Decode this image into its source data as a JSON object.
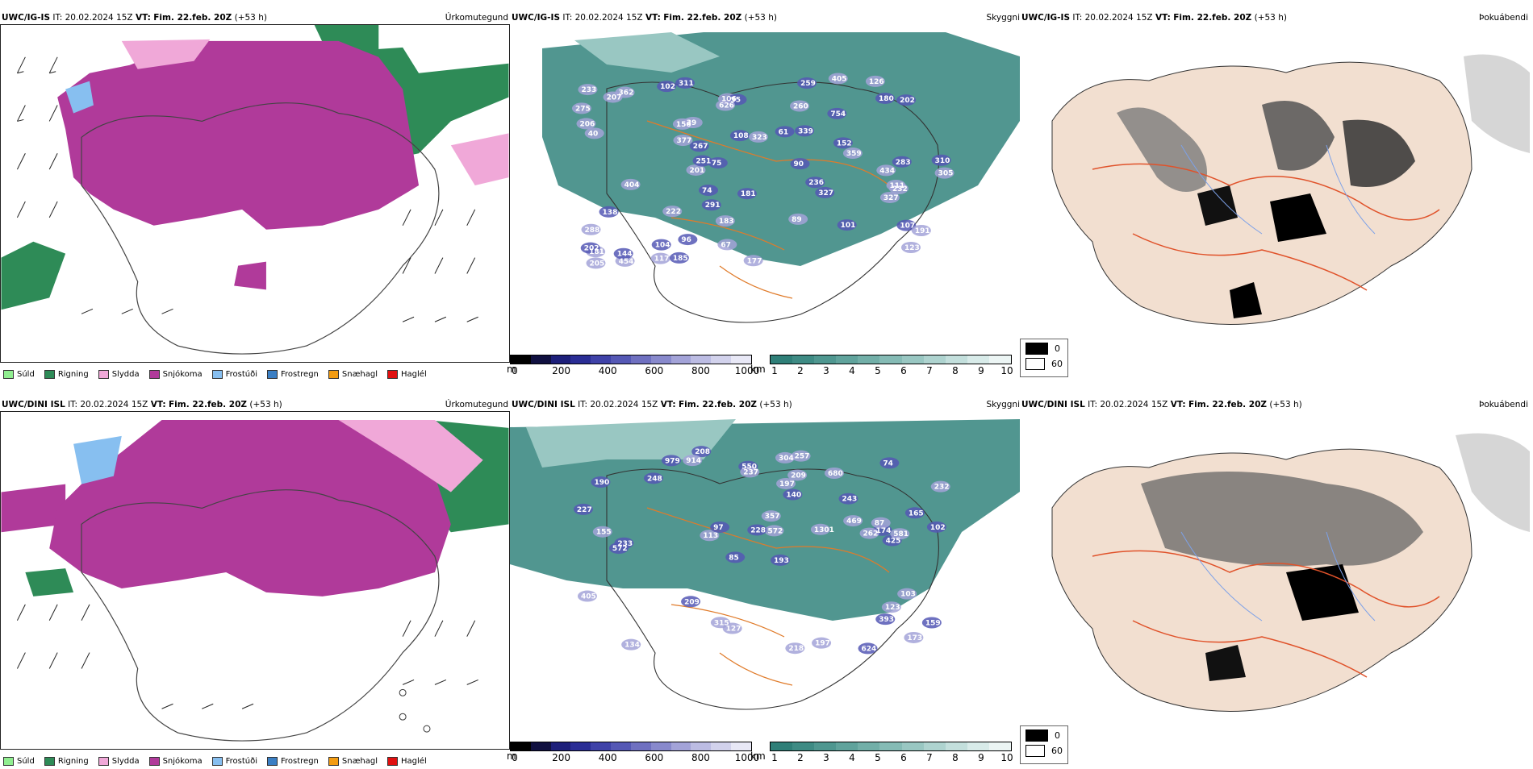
{
  "panels": [
    {
      "model": "UWC/IG-IS",
      "info": "IT: 20.02.2024 15Z",
      "vt_label": "VT:",
      "vt": "Fim. 22.feb. 20Z",
      "lead": "(+53 h)",
      "variable": "Úrkomutegund"
    },
    {
      "model": "UWC/IG-IS",
      "info": "IT: 20.02.2024 15Z",
      "vt_label": "VT:",
      "vt": "Fim. 22.feb. 20Z",
      "lead": "(+53 h)",
      "variable": "Skyggni"
    },
    {
      "model": "UWC/IG-IS",
      "info": "IT: 20.02.2024 15Z",
      "vt_label": "VT:",
      "vt": "Fim. 22.feb. 20Z",
      "lead": "(+53 h)",
      "variable": "Þokuábendi"
    },
    {
      "model": "UWC/DINI ISL",
      "info": "IT: 20.02.2024 15Z",
      "vt_label": "VT:",
      "vt": "Fim. 22.feb. 20Z",
      "lead": "(+53 h)",
      "variable": "Úrkomutegund"
    },
    {
      "model": "UWC/DINI ISL",
      "info": "IT: 20.02.2024 15Z",
      "vt_label": "VT:",
      "vt": "Fim. 22.feb. 20Z",
      "lead": "(+53 h)",
      "variable": "Skyggni"
    },
    {
      "model": "UWC/DINI ISL",
      "info": "IT: 20.02.2024 15Z",
      "vt_label": "VT:",
      "vt": "Fim. 22.feb. 20Z",
      "lead": "(+53 h)",
      "variable": "Þokuábendi"
    }
  ],
  "precip_legend": [
    {
      "label": "Súld",
      "color": "#90ee90"
    },
    {
      "label": "Rigning",
      "color": "#2e8b57"
    },
    {
      "label": "Slydda",
      "color": "#f0a8d8"
    },
    {
      "label": "Snjókoma",
      "color": "#b03a9a"
    },
    {
      "label": "Frostúði",
      "color": "#87bff0"
    },
    {
      "label": "Frostregn",
      "color": "#3b7fc4"
    },
    {
      "label": "Snæhagl",
      "color": "#f39c12"
    },
    {
      "label": "Haglél",
      "color": "#e01010"
    }
  ],
  "vis_m_bar": {
    "unit": "m",
    "ticks": [
      "0",
      "200",
      "400",
      "600",
      "800",
      "1000"
    ],
    "colors": [
      "#000000",
      "#101040",
      "#1d1f7a",
      "#2a2d95",
      "#3f42a8",
      "#5558b5",
      "#6f70c0",
      "#8889cc",
      "#a3a3d8",
      "#bcbce3",
      "#d2d2ec",
      "#e8e8f6"
    ]
  },
  "vis_km_bar": {
    "unit": "km",
    "ticks": [
      "1",
      "2",
      "3",
      "4",
      "5",
      "6",
      "7",
      "8",
      "9",
      "10"
    ],
    "colors": [
      "#2f7f78",
      "#3e8b84",
      "#4f9790",
      "#60a39c",
      "#72afa8",
      "#85bbb5",
      "#99c7c2",
      "#aed3cf",
      "#c3dfdc",
      "#d8ebe9",
      "#ecf5f4"
    ]
  },
  "fog_legend": [
    {
      "label": "0",
      "color": "#000000"
    },
    {
      "label": "60",
      "color": "#ffffff"
    }
  ],
  "vis_labels_top": [
    "123",
    "67",
    "75",
    "102",
    "106",
    "311",
    "39",
    "202",
    "55",
    "291",
    "207",
    "205",
    "236",
    "377",
    "183",
    "626",
    "405",
    "101",
    "107",
    "90",
    "156",
    "74",
    "104",
    "201",
    "181",
    "434",
    "138",
    "117",
    "327",
    "180",
    "454",
    "310",
    "126",
    "275",
    "206",
    "222",
    "144",
    "40",
    "108",
    "152",
    "96",
    "260",
    "288",
    "233",
    "305",
    "251",
    "323",
    "111",
    "232",
    "191",
    "181",
    "283",
    "89",
    "202",
    "339",
    "359",
    "327",
    "267",
    "259",
    "362",
    "185",
    "177",
    "404",
    "754",
    "61"
  ],
  "vis_labels_bottom": [
    "208",
    "134",
    "85",
    "209",
    "190",
    "979",
    "140",
    "550",
    "914",
    "193",
    "218",
    "123",
    "469",
    "680",
    "572",
    "127",
    "405",
    "113",
    "174",
    "74",
    "393",
    "248",
    "97",
    "624",
    "87",
    "173",
    "237",
    "165",
    "197",
    "233",
    "243",
    "103",
    "227",
    "572",
    "425",
    "315",
    "304",
    "262",
    "228",
    "155",
    "159",
    "197",
    "209",
    "257",
    "581",
    "357",
    "232",
    "1301",
    "102"
  ]
}
